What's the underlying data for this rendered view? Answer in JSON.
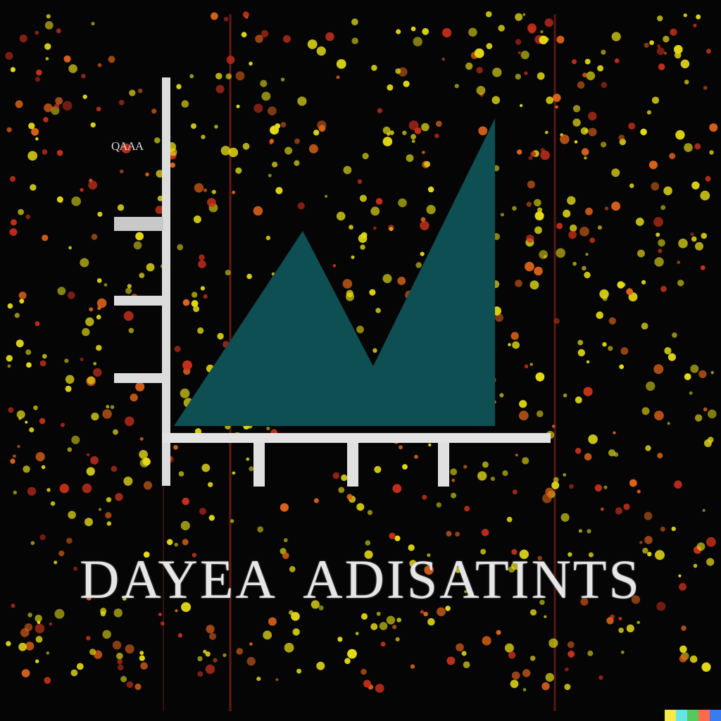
{
  "axis_label": "QAAA",
  "title_left": "DAYEA",
  "title_right": "ADISATINTS",
  "colors": {
    "background": "#050505",
    "area_fill": "#0d4f52",
    "axis": "#e3e3e3",
    "dot_yellow": "#e6dc16",
    "dot_orange": "#e0641a",
    "dot_red": "#c8301c",
    "vertical_line": "#7a1f1a"
  },
  "watermark_colors": [
    "#f5e94a",
    "#66e3e6",
    "#55c95a",
    "#ff6b4a",
    "#3a7cf0"
  ]
}
